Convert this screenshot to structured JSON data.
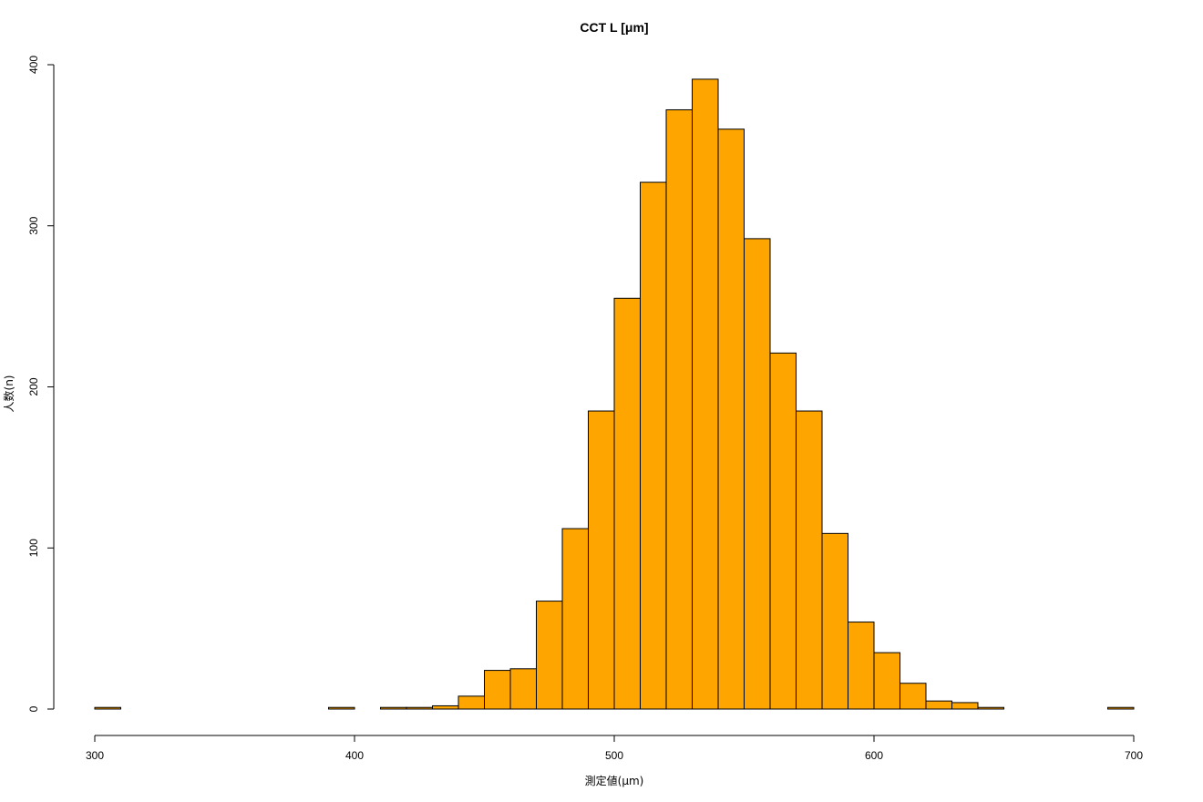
{
  "chart_data": {
    "type": "bar",
    "title": "CCT L [μm]",
    "xlabel": "測定値(μm)",
    "ylabel": "人数(n)",
    "xlim": [
      300,
      700
    ],
    "ylim": [
      0,
      400
    ],
    "x_ticks": [
      300,
      400,
      500,
      600,
      700
    ],
    "y_ticks": [
      0,
      100,
      200,
      300,
      400
    ],
    "bin_width": 10,
    "bin_edges": [
      300,
      310,
      320,
      330,
      340,
      350,
      360,
      370,
      380,
      390,
      400,
      410,
      420,
      430,
      440,
      450,
      460,
      470,
      480,
      490,
      500,
      510,
      520,
      530,
      540,
      550,
      560,
      570,
      580,
      590,
      600,
      610,
      620,
      630,
      640,
      650,
      660,
      670,
      680,
      690,
      700
    ],
    "values": [
      1,
      0,
      0,
      0,
      0,
      0,
      0,
      0,
      0,
      1,
      0,
      1,
      1,
      2,
      8,
      24,
      25,
      67,
      112,
      185,
      255,
      327,
      372,
      391,
      360,
      292,
      221,
      185,
      109,
      54,
      35,
      16,
      5,
      4,
      1,
      0,
      0,
      0,
      0,
      1
    ],
    "bar_color": "#FFA500",
    "grid": false,
    "legend": "none"
  }
}
